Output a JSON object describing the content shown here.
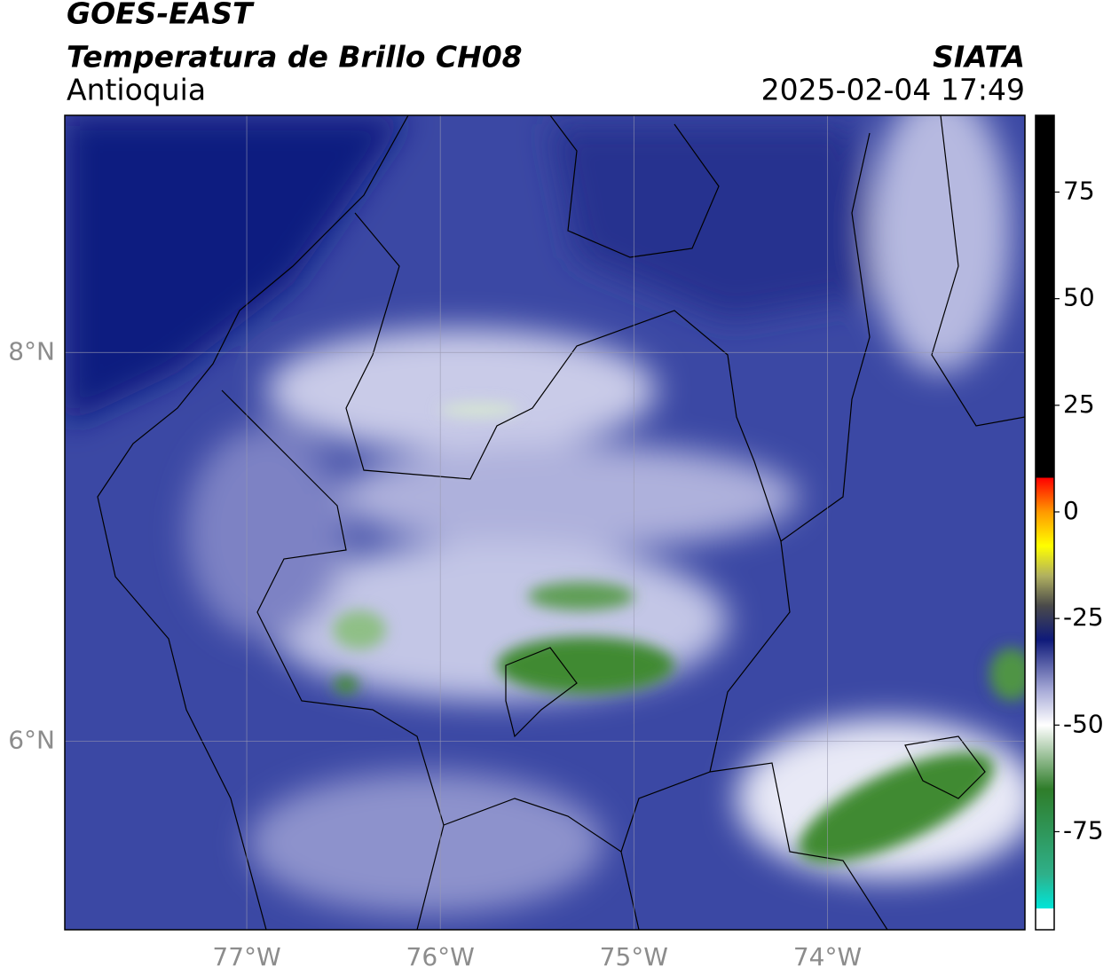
{
  "header": {
    "title": "GOES-EAST",
    "subtitle": "Temperatura de Brillo CH08",
    "agency": "SIATA",
    "region": "Antioquia",
    "datetime": "2025-02-04 17:49"
  },
  "map": {
    "xlim": [
      -77.94,
      -72.98
    ],
    "ylim": [
      5.03,
      9.22
    ],
    "xticks": [
      {
        "value": -77,
        "label": "77°W"
      },
      {
        "value": -76,
        "label": "76°W"
      },
      {
        "value": -75,
        "label": "75°W"
      },
      {
        "value": -74,
        "label": "74°W"
      }
    ],
    "yticks": [
      {
        "value": 6,
        "label": "6°N"
      },
      {
        "value": 8,
        "label": "8°N"
      }
    ],
    "grid": true
  },
  "colorbar": {
    "lim": [
      -98,
      93
    ],
    "ticks": [
      -75,
      -50,
      -25,
      0,
      25,
      50,
      75
    ],
    "colormap": [
      {
        "value": -98,
        "color": "#ffffff"
      },
      {
        "value": -93,
        "color": "#ffffff"
      },
      {
        "value": -93,
        "color": "#00e5d8"
      },
      {
        "value": -85,
        "color": "#2fb08a"
      },
      {
        "value": -65,
        "color": "#2f7d2a"
      },
      {
        "value": -50,
        "color": "#ffffff"
      },
      {
        "value": -42,
        "color": "#a9acd8"
      },
      {
        "value": -30,
        "color": "#0f1a7a"
      },
      {
        "value": -22,
        "color": "#4a4a4a"
      },
      {
        "value": -15,
        "color": "#b0b060"
      },
      {
        "value": -8,
        "color": "#ffff00"
      },
      {
        "value": 0,
        "color": "#ff9900"
      },
      {
        "value": 8,
        "color": "#ff0000"
      },
      {
        "value": 8,
        "color": "#000000"
      },
      {
        "value": 93,
        "color": "#000000"
      }
    ]
  }
}
